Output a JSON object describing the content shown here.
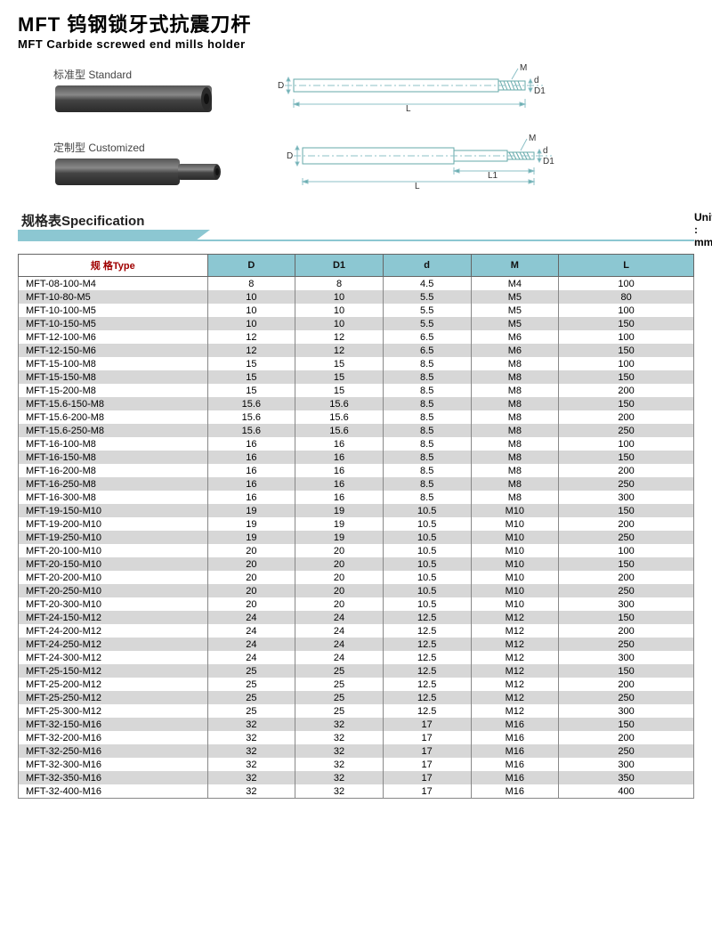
{
  "title_cn": "MFT 钨钢锁牙式抗震刀杆",
  "title_en": "MFT Carbide screwed end mills holder",
  "variant1_label": "标准型 Standard",
  "variant2_label": "定制型 Customized",
  "spec_title": "规格表Specification",
  "unit_label": "Unit : mm",
  "diagram_labels": {
    "D": "D",
    "D1": "D1",
    "d": "d",
    "M": "M",
    "L": "L",
    "L1": "L1"
  },
  "colors": {
    "header_bg": "#8cc7d2",
    "row_alt": "#d7d7d7",
    "border": "#888888",
    "type_header": "#a00000",
    "diagram_line": "#8cc0c7",
    "holder_fill": "#3a3a3a",
    "holder_highlight": "#6b6b6b"
  },
  "table": {
    "columns": [
      "规 格Type",
      "D",
      "D1",
      "d",
      "M",
      "L"
    ],
    "col_widths": [
      "28%",
      "13%",
      "13%",
      "13%",
      "13%",
      "20%"
    ],
    "rows": [
      [
        "MFT-08-100-M4",
        "8",
        "8",
        "4.5",
        "M4",
        "100"
      ],
      [
        "MFT-10-80-M5",
        "10",
        "10",
        "5.5",
        "M5",
        "80"
      ],
      [
        "MFT-10-100-M5",
        "10",
        "10",
        "5.5",
        "M5",
        "100"
      ],
      [
        "MFT-10-150-M5",
        "10",
        "10",
        "5.5",
        "M5",
        "150"
      ],
      [
        "MFT-12-100-M6",
        "12",
        "12",
        "6.5",
        "M6",
        "100"
      ],
      [
        "MFT-12-150-M6",
        "12",
        "12",
        "6.5",
        "M6",
        "150"
      ],
      [
        "MFT-15-100-M8",
        "15",
        "15",
        "8.5",
        "M8",
        "100"
      ],
      [
        "MFT-15-150-M8",
        "15",
        "15",
        "8.5",
        "M8",
        "150"
      ],
      [
        "MFT-15-200-M8",
        "15",
        "15",
        "8.5",
        "M8",
        "200"
      ],
      [
        "MFT-15.6-150-M8",
        "15.6",
        "15.6",
        "8.5",
        "M8",
        "150"
      ],
      [
        "MFT-15.6-200-M8",
        "15.6",
        "15.6",
        "8.5",
        "M8",
        "200"
      ],
      [
        "MFT-15.6-250-M8",
        "15.6",
        "15.6",
        "8.5",
        "M8",
        "250"
      ],
      [
        "MFT-16-100-M8",
        "16",
        "16",
        "8.5",
        "M8",
        "100"
      ],
      [
        "MFT-16-150-M8",
        "16",
        "16",
        "8.5",
        "M8",
        "150"
      ],
      [
        "MFT-16-200-M8",
        "16",
        "16",
        "8.5",
        "M8",
        "200"
      ],
      [
        "MFT-16-250-M8",
        "16",
        "16",
        "8.5",
        "M8",
        "250"
      ],
      [
        "MFT-16-300-M8",
        "16",
        "16",
        "8.5",
        "M8",
        "300"
      ],
      [
        "MFT-19-150-M10",
        "19",
        "19",
        "10.5",
        "M10",
        "150"
      ],
      [
        "MFT-19-200-M10",
        "19",
        "19",
        "10.5",
        "M10",
        "200"
      ],
      [
        "MFT-19-250-M10",
        "19",
        "19",
        "10.5",
        "M10",
        "250"
      ],
      [
        "MFT-20-100-M10",
        "20",
        "20",
        "10.5",
        "M10",
        "100"
      ],
      [
        "MFT-20-150-M10",
        "20",
        "20",
        "10.5",
        "M10",
        "150"
      ],
      [
        "MFT-20-200-M10",
        "20",
        "20",
        "10.5",
        "M10",
        "200"
      ],
      [
        "MFT-20-250-M10",
        "20",
        "20",
        "10.5",
        "M10",
        "250"
      ],
      [
        "MFT-20-300-M10",
        "20",
        "20",
        "10.5",
        "M10",
        "300"
      ],
      [
        "MFT-24-150-M12",
        "24",
        "24",
        "12.5",
        "M12",
        "150"
      ],
      [
        "MFT-24-200-M12",
        "24",
        "24",
        "12.5",
        "M12",
        "200"
      ],
      [
        "MFT-24-250-M12",
        "24",
        "24",
        "12.5",
        "M12",
        "250"
      ],
      [
        "MFT-24-300-M12",
        "24",
        "24",
        "12.5",
        "M12",
        "300"
      ],
      [
        "MFT-25-150-M12",
        "25",
        "25",
        "12.5",
        "M12",
        "150"
      ],
      [
        "MFT-25-200-M12",
        "25",
        "25",
        "12.5",
        "M12",
        "200"
      ],
      [
        "MFT-25-250-M12",
        "25",
        "25",
        "12.5",
        "M12",
        "250"
      ],
      [
        "MFT-25-300-M12",
        "25",
        "25",
        "12.5",
        "M12",
        "300"
      ],
      [
        "MFT-32-150-M16",
        "32",
        "32",
        "17",
        "M16",
        "150"
      ],
      [
        "MFT-32-200-M16",
        "32",
        "32",
        "17",
        "M16",
        "200"
      ],
      [
        "MFT-32-250-M16",
        "32",
        "32",
        "17",
        "M16",
        "250"
      ],
      [
        "MFT-32-300-M16",
        "32",
        "32",
        "17",
        "M16",
        "300"
      ],
      [
        "MFT-32-350-M16",
        "32",
        "32",
        "17",
        "M16",
        "350"
      ],
      [
        "MFT-32-400-M16",
        "32",
        "32",
        "17",
        "M16",
        "400"
      ]
    ]
  }
}
